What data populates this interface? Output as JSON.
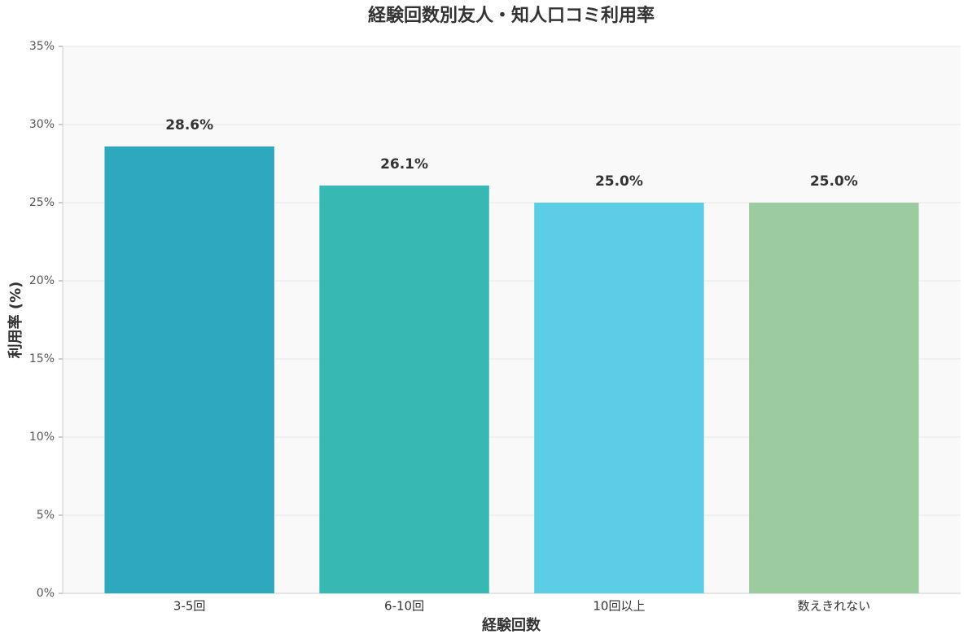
{
  "chart_data": {
    "type": "bar",
    "title": "経験回数別友人・知人口コミ利用率",
    "x_label": "経験回数",
    "y_label": "利用率 (%)",
    "categories": [
      "3-5回",
      "6-10回",
      "10回以上",
      "数えきれない"
    ],
    "values": [
      28.6,
      26.1,
      25.0,
      25.0
    ],
    "value_labels": [
      "28.6%",
      "26.1%",
      "25.0%",
      "25.0%"
    ],
    "colors": [
      "#2ea8bc",
      "#38b8b2",
      "#5bcde4",
      "#9ccb9f"
    ],
    "ylim": [
      0,
      35
    ],
    "yticks": [
      {
        "value": 0,
        "label": "0%"
      },
      {
        "value": 5,
        "label": "5%"
      },
      {
        "value": 10,
        "label": "10%"
      },
      {
        "value": 15,
        "label": "15%"
      },
      {
        "value": 20,
        "label": "20%"
      },
      {
        "value": 25,
        "label": "25%"
      },
      {
        "value": 30,
        "label": "30%"
      },
      {
        "value": 35,
        "label": "35%"
      }
    ],
    "grid": true
  }
}
